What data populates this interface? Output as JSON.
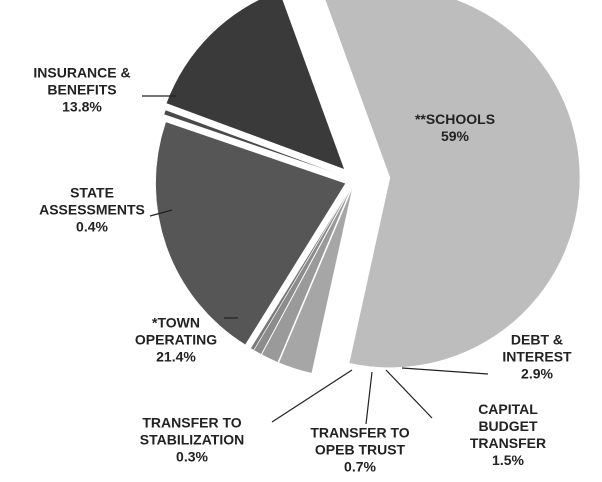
{
  "chart_data": {
    "type": "pie",
    "categories": [
      "**SCHOOLS",
      "DEBT &\nINTEREST",
      "CAPITAL BUDGET\nTRANSFER",
      "TRANSFER TO\nOPEB TRUST",
      "TRANSFER TO\nSTABILIZATION",
      "*TOWN\nOPERATING",
      "STATE\nASSESSMENTS",
      "INSURANCE &\nBENEFITS"
    ],
    "values": [
      59,
      2.9,
      1.5,
      0.7,
      0.3,
      21.4,
      0.4,
      13.8
    ],
    "value_labels": [
      "59%",
      "2.9%",
      "1.5%",
      "0.7%",
      "0.3%",
      "21.4%",
      "0.4%",
      "13.8%"
    ],
    "colors": [
      "#bdbdbd",
      "#a6a6a6",
      "#9a9a9a",
      "#8c8c8c",
      "#7a7a7a",
      "#565656",
      "#4a4a4a",
      "#3a3a3a"
    ]
  }
}
